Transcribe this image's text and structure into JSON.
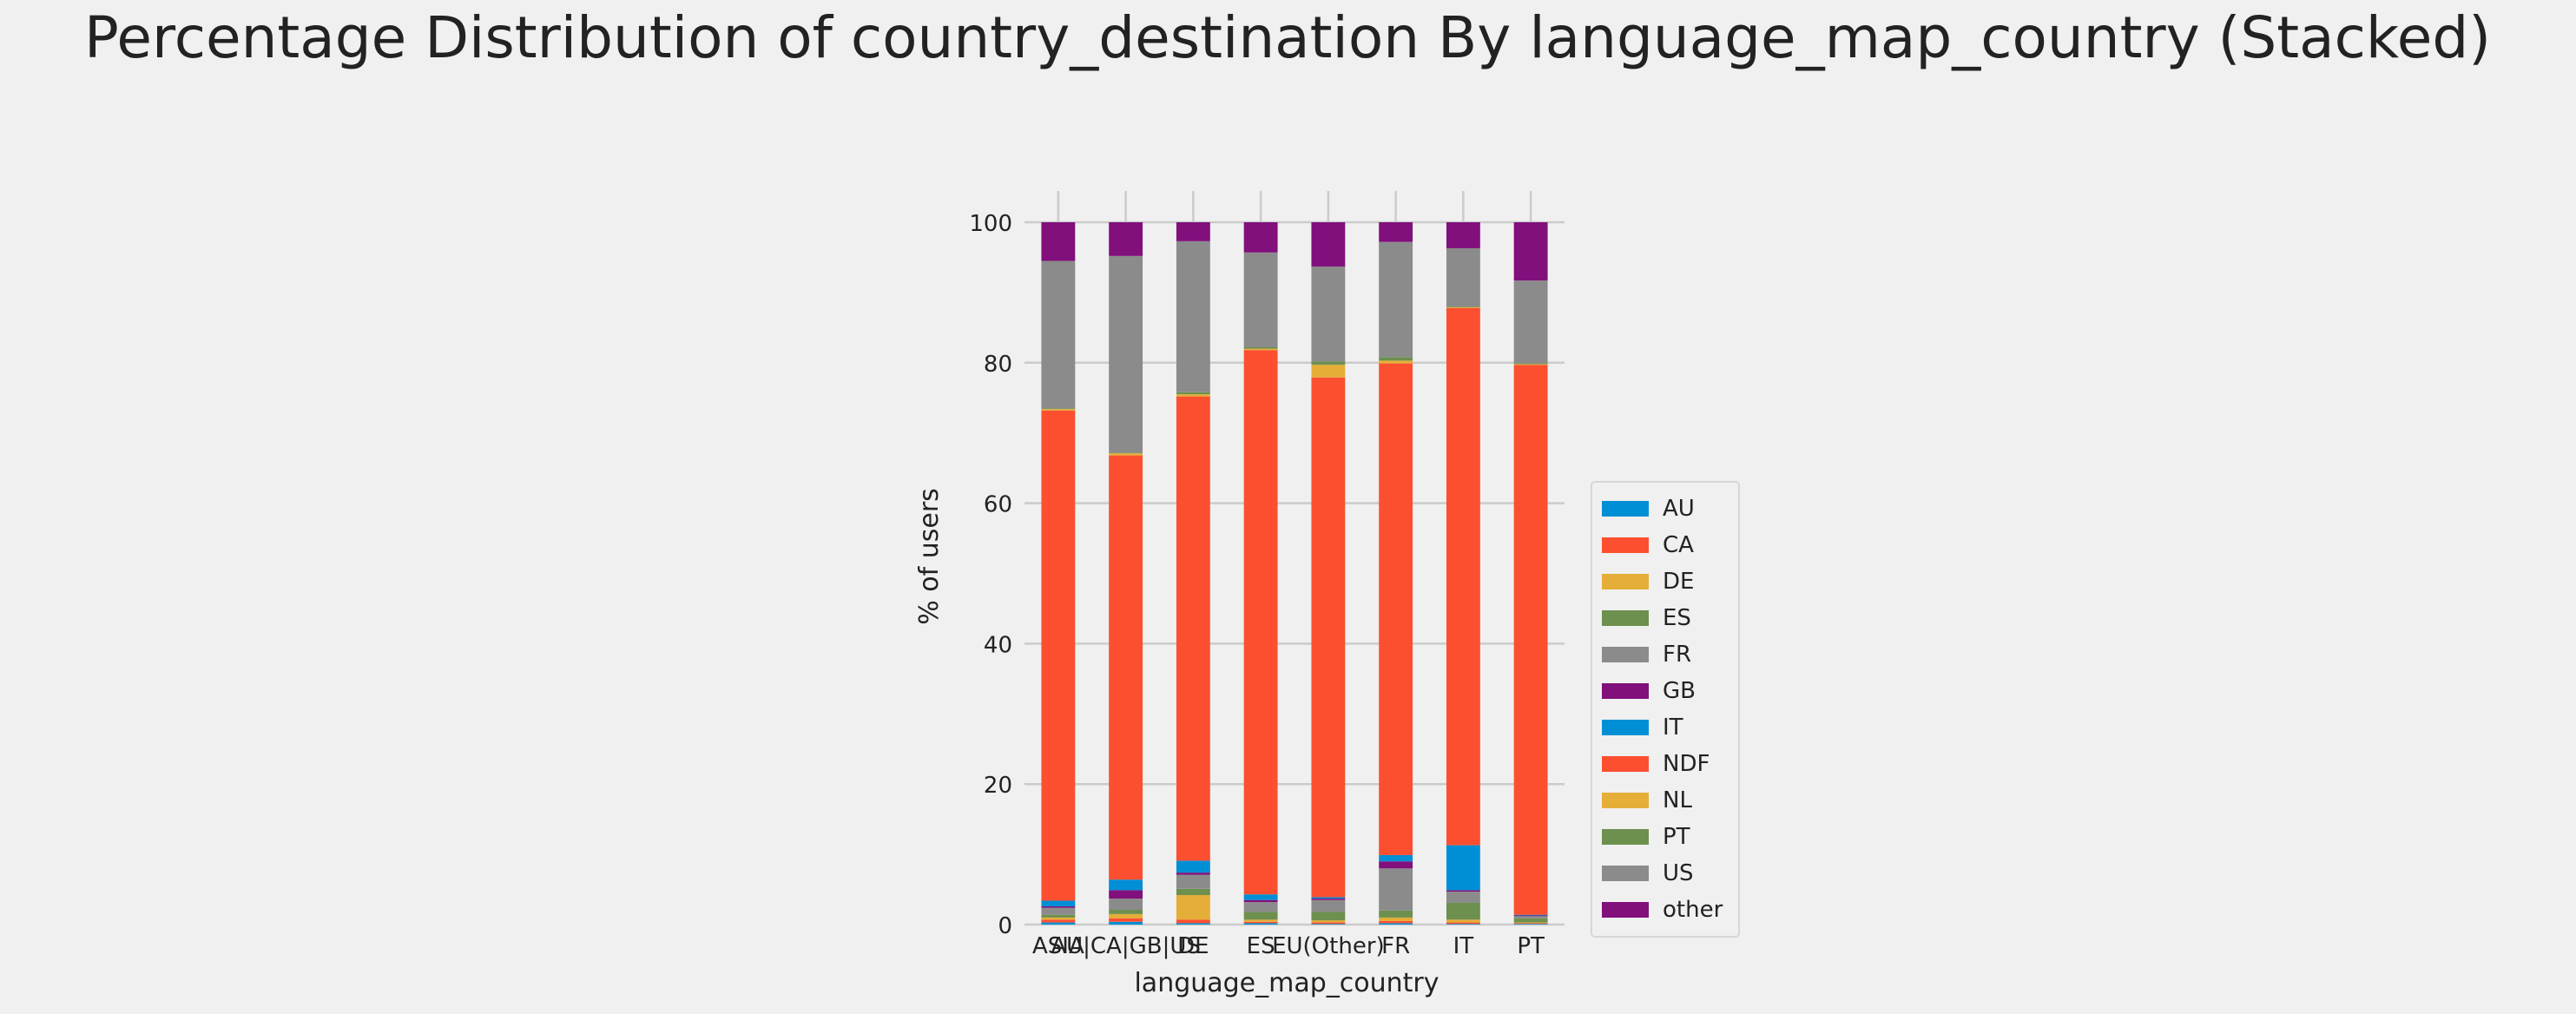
{
  "chart_data": {
    "type": "bar",
    "stacked": true,
    "title": "Percentage Distribution of country_destination By language_map_country (Stacked)",
    "xlabel": "language_map_country",
    "ylabel": "% of users",
    "ylim": [
      0,
      100
    ],
    "yticks": [
      0,
      20,
      40,
      60,
      80,
      100
    ],
    "grid": true,
    "legend_position": "right",
    "categories": [
      "ASIA",
      "AU|CA|GB|US",
      "DE",
      "ES",
      "EU(Other)",
      "FR",
      "IT",
      "PT"
    ],
    "series": [
      {
        "name": "AU",
        "color": "#008fd5",
        "values": [
          0.3,
          0.4,
          0.2,
          0.2,
          0.1,
          0.2,
          0.1,
          0.1
        ]
      },
      {
        "name": "CA",
        "color": "#fc4f30",
        "values": [
          0.4,
          0.5,
          0.5,
          0.2,
          0.2,
          0.3,
          0.2,
          0.1
        ]
      },
      {
        "name": "DE",
        "color": "#e5ae38",
        "values": [
          0.3,
          0.6,
          3.5,
          0.3,
          0.3,
          0.5,
          0.4,
          0.1
        ]
      },
      {
        "name": "ES",
        "color": "#6d904f",
        "values": [
          0.4,
          0.6,
          0.9,
          1.1,
          1.2,
          1.0,
          2.4,
          0.6
        ]
      },
      {
        "name": "FR",
        "color": "#8b8b8b",
        "values": [
          1.0,
          1.6,
          2.0,
          1.4,
          1.7,
          6.0,
          1.6,
          0.3
        ]
      },
      {
        "name": "GB",
        "color": "#810f7c",
        "values": [
          0.2,
          1.2,
          0.3,
          0.3,
          0.2,
          1.0,
          0.2,
          0.1
        ]
      },
      {
        "name": "IT",
        "color": "#008fd5",
        "values": [
          0.8,
          1.5,
          1.7,
          0.8,
          0.2,
          0.9,
          6.4,
          0.1
        ]
      },
      {
        "name": "NDF",
        "color": "#fc4f30",
        "values": [
          69.8,
          60.4,
          66.1,
          77.5,
          74.0,
          70.0,
          76.5,
          78.3
        ]
      },
      {
        "name": "NL",
        "color": "#e5ae38",
        "values": [
          0.2,
          0.3,
          0.3,
          0.2,
          1.8,
          0.4,
          0.1,
          0.1
        ]
      },
      {
        "name": "PT",
        "color": "#6d904f",
        "values": [
          0.1,
          0.1,
          0.3,
          0.2,
          0.5,
          0.5,
          0.1,
          0.1
        ]
      },
      {
        "name": "US",
        "color": "#8b8b8b",
        "values": [
          21.0,
          28.0,
          21.5,
          13.5,
          13.5,
          16.4,
          8.3,
          11.8
        ]
      },
      {
        "name": "other",
        "color": "#810f7c",
        "values": [
          5.5,
          4.8,
          2.7,
          4.3,
          6.3,
          2.8,
          3.7,
          8.3
        ]
      }
    ]
  }
}
